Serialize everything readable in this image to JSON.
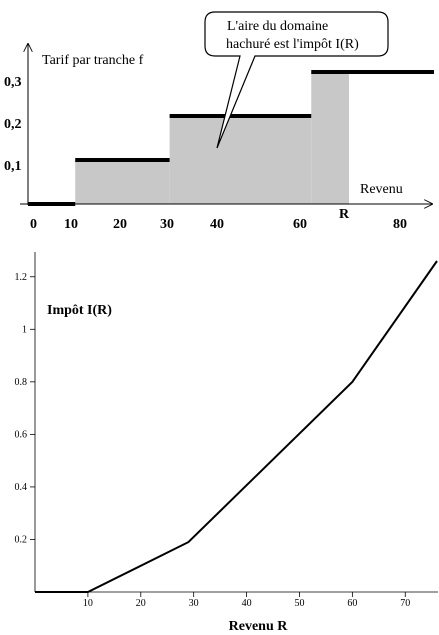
{
  "chart_data": [
    {
      "type": "step",
      "ylabel": "Tarif par tranche f",
      "xlabel": "Revenu",
      "x_ticks": [
        "0",
        "10",
        "20",
        "30",
        "40",
        "60",
        "80"
      ],
      "y_ticks": [
        "0,1",
        "0,2",
        "0,3"
      ],
      "r_label": "R",
      "callout": [
        "L'aire du domaine",
        "hachuré est l'impôt I(R)"
      ],
      "steps": [
        {
          "x0": 0,
          "x1": 10,
          "y": 0
        },
        {
          "x0": 10,
          "x1": 30,
          "y": 0.1
        },
        {
          "x0": 30,
          "x1": 60,
          "y": 0.2
        },
        {
          "x0": 60,
          "x1": 86,
          "y": 0.3
        }
      ],
      "shaded_to": 68,
      "xlim": [
        0,
        86
      ],
      "ylim": [
        0,
        0.3
      ],
      "fill_color": "#c8c8c8",
      "line_color": "#000000"
    },
    {
      "type": "line",
      "title": "Impôt I(R)",
      "xlabel": "Revenu R",
      "x": [
        0,
        10,
        29,
        60,
        76
      ],
      "y": [
        0,
        0,
        0.19,
        0.8,
        1.26
      ],
      "x_ticks": [
        "10",
        "20",
        "30",
        "40",
        "50",
        "60",
        "70"
      ],
      "y_ticks": [
        "0.2",
        "0.4",
        "0.6",
        "0.8",
        "1",
        "1.2"
      ],
      "xlim": [
        0,
        76
      ],
      "ylim": [
        0,
        1.26
      ],
      "line_color": "#000000"
    }
  ]
}
